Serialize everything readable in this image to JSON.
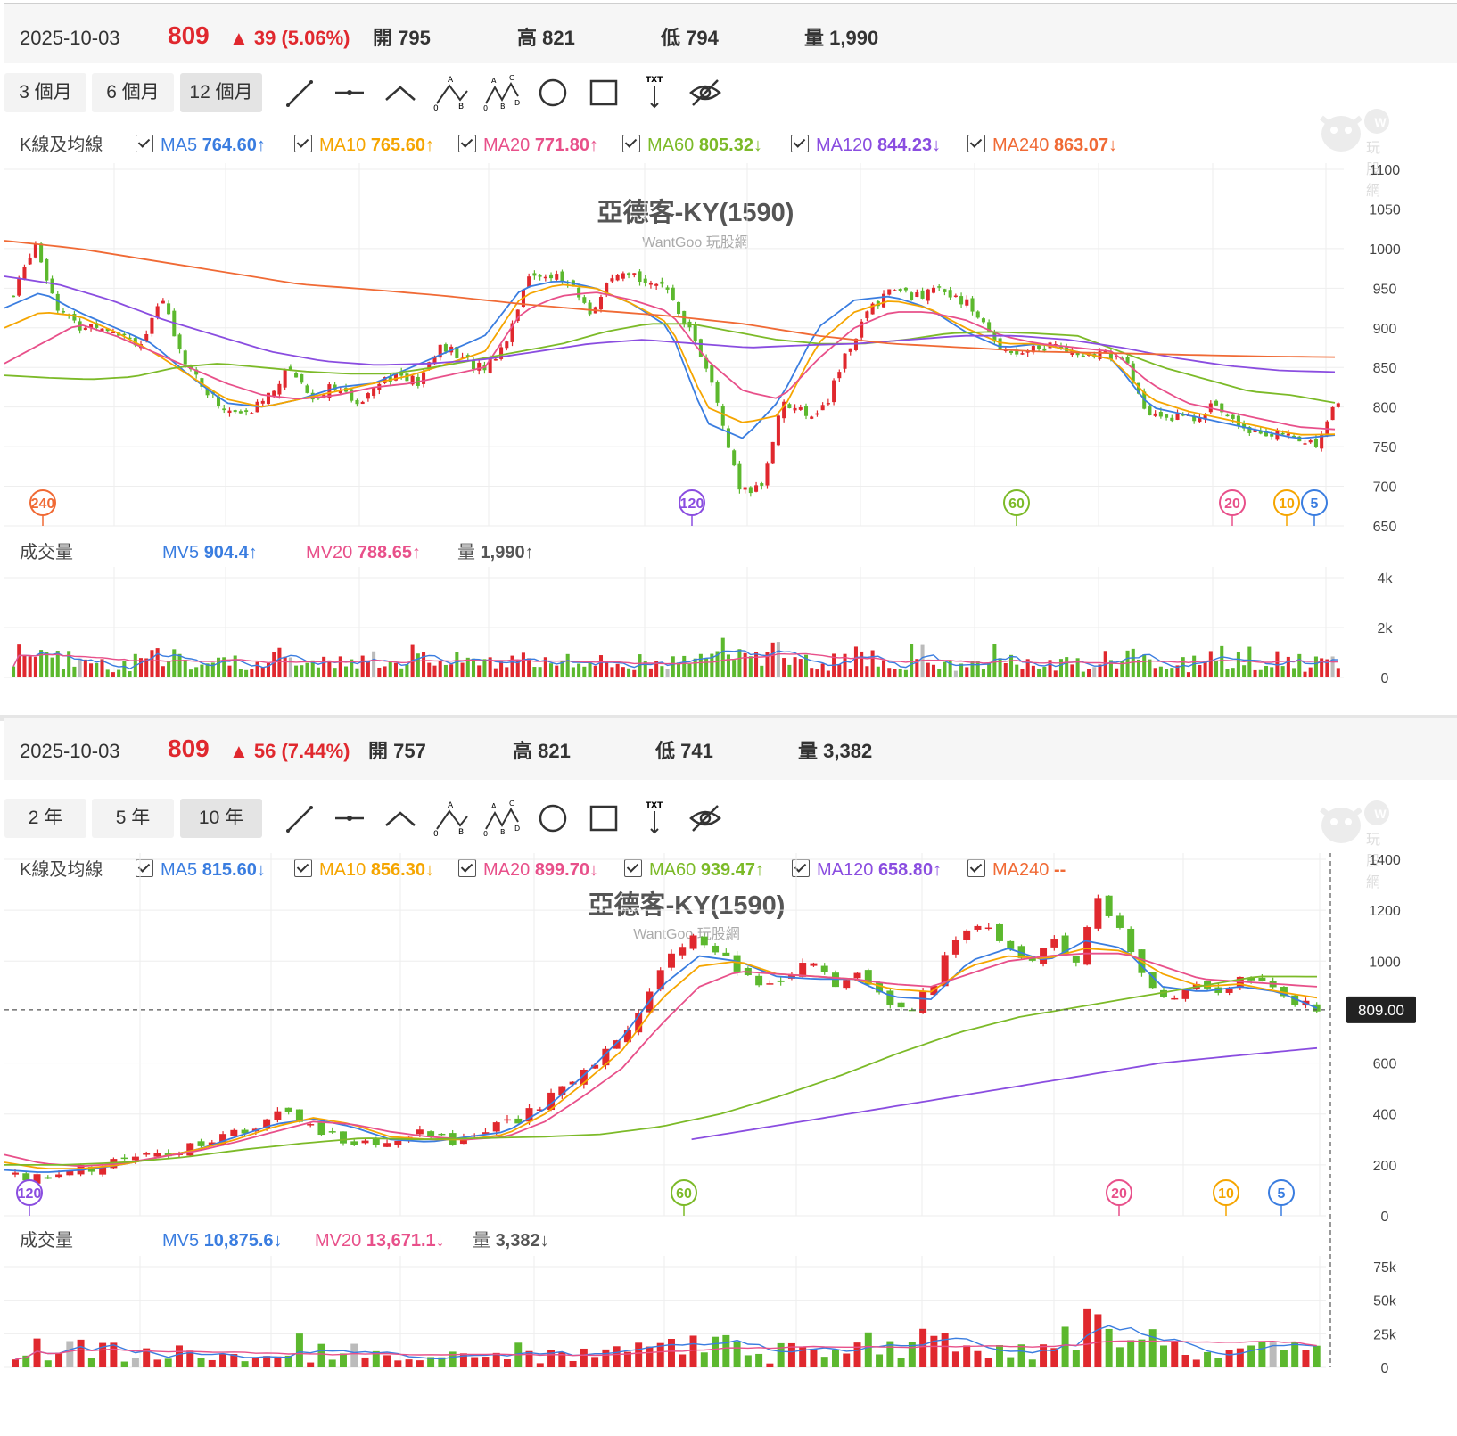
{
  "panels": [
    {
      "date": "2025-10-03",
      "price": "809",
      "change": "▲ 39 (5.06%)",
      "open_label": "開",
      "open": "795",
      "high_label": "高",
      "high": "821",
      "low_label": "低",
      "low": "794",
      "vol_label": "量",
      "vol": "1,990",
      "ranges": [
        "3 個月",
        "6 個月",
        "12 個月"
      ],
      "selected_range": 2,
      "kline_label": "K線及均線",
      "ma": [
        {
          "name": "MA5",
          "value": "764.60",
          "arrow": "↑",
          "color": "#3a7de0"
        },
        {
          "name": "MA10",
          "value": "765.60",
          "arrow": "↑",
          "color": "#f5a500"
        },
        {
          "name": "MA20",
          "value": "771.80",
          "arrow": "↑",
          "color": "#e8508a"
        },
        {
          "name": "MA60",
          "value": "805.32",
          "arrow": "↓",
          "color": "#7cba28"
        },
        {
          "name": "MA120",
          "value": "844.23",
          "arrow": "↓",
          "color": "#8a4de0"
        },
        {
          "name": "MA240",
          "value": "863.07",
          "arrow": "↓",
          "color": "#f06a35"
        }
      ],
      "vol_header": "成交量",
      "mv": [
        {
          "name": "MV5",
          "value": "904.4",
          "arrow": "↑",
          "color": "#3a7de0"
        },
        {
          "name": "MV20",
          "value": "788.65",
          "arrow": "↑",
          "color": "#e8508a"
        },
        {
          "name": "量",
          "value": "1,990",
          "arrow": "↑",
          "color": "#555"
        }
      ],
      "chart_title": "亞德客-KY(1590)",
      "chart_subtitle": "WantGoo 玩股網",
      "logo_text": "玩股網"
    },
    {
      "date": "2025-10-03",
      "price": "809",
      "change": "▲ 56 (7.44%)",
      "open_label": "開",
      "open": "757",
      "high_label": "高",
      "high": "821",
      "low_label": "低",
      "low": "741",
      "vol_label": "量",
      "vol": "3,382",
      "ranges": [
        "2 年",
        "5 年",
        "10 年"
      ],
      "selected_range": 2,
      "kline_label": "K線及均線",
      "ma": [
        {
          "name": "MA5",
          "value": "815.60",
          "arrow": "↓",
          "color": "#3a7de0"
        },
        {
          "name": "MA10",
          "value": "856.30",
          "arrow": "↓",
          "color": "#f5a500"
        },
        {
          "name": "MA20",
          "value": "899.70",
          "arrow": "↓",
          "color": "#e8508a"
        },
        {
          "name": "MA60",
          "value": "939.47",
          "arrow": "↑",
          "color": "#7cba28"
        },
        {
          "name": "MA120",
          "value": "658.80",
          "arrow": "↑",
          "color": "#8a4de0"
        },
        {
          "name": "MA240",
          "value": "--",
          "arrow": "",
          "color": "#f06a35"
        }
      ],
      "vol_header": "成交量",
      "mv": [
        {
          "name": "MV5",
          "value": "10,875.6",
          "arrow": "↓",
          "color": "#3a7de0"
        },
        {
          "name": "MV20",
          "value": "13,671.1",
          "arrow": "↓",
          "color": "#e8508a"
        },
        {
          "name": "量",
          "value": "3,382",
          "arrow": "↓",
          "color": "#555"
        }
      ],
      "chart_title": "亞德客-KY(1590)",
      "chart_subtitle": "WantGoo 玩股網",
      "price_tag": "809.00",
      "logo_text": "玩股網"
    }
  ],
  "tools": [
    "line-tool-icon",
    "horizontal-line-tool-icon",
    "angle-tool-icon",
    "abc-pattern-tool-icon",
    "abcd-pattern-tool-icon",
    "circle-tool-icon",
    "rectangle-tool-icon",
    "text-tool-icon",
    "hide-drawings-icon"
  ],
  "colors": {
    "up": "#e0282e",
    "down": "#5cb82e",
    "flat": "#bbbbbb"
  },
  "chart_data": [
    {
      "type": "candlestick",
      "title": "亞德客-KY(1590)",
      "y_ticks": [
        1100,
        1050,
        1000,
        950,
        900,
        850,
        800,
        750,
        700,
        650
      ],
      "ylim": [
        650,
        1100
      ],
      "volume_ticks": [
        "4k",
        "2k",
        "0"
      ],
      "volume_ylim": [
        0,
        4000
      ],
      "close_anchors": [
        940,
        1010,
        930,
        900,
        905,
        895,
        880,
        935,
        860,
        820,
        795,
        790,
        820,
        850,
        810,
        830,
        800,
        835,
        840,
        830,
        880,
        860,
        850,
        880,
        960,
        970,
        955,
        920,
        960,
        965,
        960,
        930,
        880,
        800,
        690,
        700,
        810,
        790,
        800,
        870,
        920,
        950,
        940,
        945,
        945,
        920,
        880,
        870,
        875,
        880,
        860,
        870,
        860,
        790,
        790,
        785,
        800,
        790,
        770,
        765,
        760,
        755,
        809
      ],
      "ma_anchors": {
        "MA5": [
          925,
          945,
          920,
          900,
          880,
          840,
          805,
          800,
          810,
          825,
          830,
          850,
          870,
          890,
          950,
          960,
          950,
          930,
          900,
          780,
          760,
          810,
          900,
          935,
          940,
          925,
          895,
          875,
          880,
          870,
          860,
          800,
          790,
          780,
          770,
          760,
          764.6
        ],
        "MA10": [
          900,
          920,
          915,
          895,
          870,
          840,
          810,
          800,
          810,
          820,
          830,
          840,
          855,
          870,
          940,
          955,
          950,
          930,
          905,
          800,
          780,
          790,
          880,
          920,
          935,
          925,
          900,
          880,
          880,
          870,
          860,
          810,
          795,
          785,
          775,
          765,
          765.6
        ],
        "MA20": [
          855,
          880,
          905,
          890,
          870,
          850,
          830,
          815,
          810,
          815,
          825,
          830,
          840,
          850,
          920,
          940,
          945,
          935,
          920,
          860,
          820,
          810,
          860,
          900,
          920,
          920,
          910,
          890,
          880,
          875,
          870,
          830,
          805,
          795,
          785,
          775,
          771.8
        ],
        "MA60": [
          840,
          837,
          835,
          838,
          850,
          855,
          850,
          845,
          842,
          842,
          850,
          860,
          870,
          880,
          895,
          905,
          905,
          895,
          885,
          880,
          880,
          885,
          893,
          895,
          893,
          890,
          870,
          850,
          835,
          820,
          815,
          805.32
        ],
        "MA120": [
          965,
          955,
          935,
          910,
          890,
          870,
          858,
          853,
          855,
          860,
          870,
          880,
          885,
          880,
          875,
          878,
          880,
          885,
          890,
          890,
          885,
          875,
          862,
          852,
          846,
          844.23
        ],
        "MA240": [
          1010,
          1000,
          985,
          970,
          955,
          948,
          940,
          930,
          922,
          915,
          905,
          890,
          880,
          875,
          870,
          868,
          866,
          864,
          863.07
        ]
      },
      "ma_markers": [
        "240",
        "120",
        "60",
        "20",
        "10",
        "5"
      ]
    },
    {
      "type": "candlestick",
      "title": "亞德客-KY(1590)",
      "y_ticks": [
        1400,
        1200,
        1000,
        809,
        600,
        400,
        200,
        0
      ],
      "ylim": [
        0,
        1400
      ],
      "last_price": 809,
      "volume_ticks": [
        "75k",
        "50k",
        "25k",
        "0"
      ],
      "volume_ylim": [
        0,
        75000
      ],
      "close_anchors": [
        160,
        155,
        170,
        190,
        210,
        220,
        240,
        270,
        300,
        330,
        350,
        400,
        380,
        320,
        260,
        290,
        310,
        320,
        290,
        300,
        350,
        380,
        450,
        520,
        600,
        700,
        800,
        1000,
        1100,
        1050,
        950,
        900,
        950,
        1000,
        900,
        950,
        850,
        800,
        900,
        1100,
        1150,
        1050,
        1000,
        1100,
        1000,
        1250,
        1100,
        900,
        850,
        900,
        850,
        950,
        900,
        850,
        809
      ],
      "ma_anchors": {
        "MA5": [
          180,
          170,
          180,
          200,
          230,
          260,
          310,
          360,
          380,
          350,
          300,
          290,
          310,
          330,
          420,
          550,
          700,
          900,
          1020,
          1000,
          940,
          930,
          930,
          860,
          850,
          1000,
          1050,
          1000,
          1080,
          1050,
          900,
          880,
          900,
          880,
          815.6
        ],
        "MA10": [
          210,
          185,
          185,
          200,
          230,
          260,
          300,
          350,
          385,
          360,
          310,
          300,
          300,
          320,
          400,
          520,
          650,
          850,
          980,
          1000,
          950,
          940,
          930,
          890,
          880,
          980,
          1020,
          1010,
          1050,
          1040,
          950,
          900,
          910,
          880,
          856.3
        ],
        "MA20": [
          240,
          205,
          195,
          205,
          230,
          255,
          290,
          330,
          370,
          360,
          330,
          310,
          300,
          310,
          370,
          470,
          580,
          750,
          900,
          960,
          950,
          940,
          930,
          910,
          900,
          950,
          1000,
          1020,
          1030,
          1030,
          980,
          930,
          920,
          910,
          899.7
        ],
        "MA60": [
          200,
          200,
          210,
          230,
          260,
          285,
          305,
          300,
          305,
          310,
          320,
          350,
          400,
          470,
          550,
          640,
          720,
          780,
          820,
          860,
          900,
          940,
          939.47
        ],
        "MA120": [
          300,
          350,
          400,
          450,
          500,
          550,
          600,
          630,
          658.8
        ]
      },
      "ma_markers": [
        "120",
        "60",
        "20",
        "10",
        "5"
      ]
    }
  ]
}
